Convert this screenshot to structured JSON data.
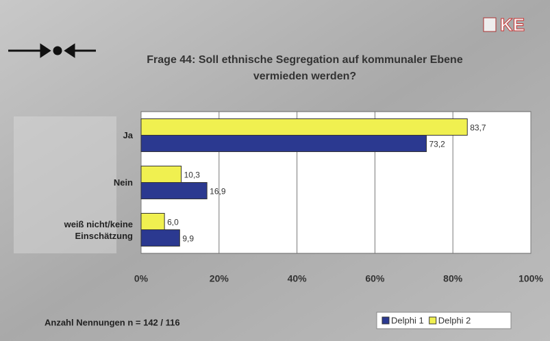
{
  "chart_data": {
    "type": "bar",
    "orientation": "horizontal",
    "title": "Frage 44: Soll ethnische Segregation auf kommunaler Ebene vermieden werden?",
    "categories": [
      "Ja",
      "Nein",
      "weiß nicht/keine Einschätzung"
    ],
    "series": [
      {
        "name": "Delphi 1",
        "color": "#2b3990",
        "values": [
          73.2,
          16.9,
          9.9
        ],
        "value_labels": [
          "73,2",
          "16,9",
          "9,9"
        ]
      },
      {
        "name": "Delphi 2",
        "color": "#f0f050",
        "values": [
          83.7,
          10.3,
          6.0
        ],
        "value_labels": [
          "83,7",
          "10,3",
          "6,0"
        ]
      }
    ],
    "xlim": [
      0,
      100
    ],
    "xticks": [
      {
        "value": 0,
        "label": "0%"
      },
      {
        "value": 20,
        "label": "20%"
      },
      {
        "value": 40,
        "label": "40%"
      },
      {
        "value": 60,
        "label": "60%"
      },
      {
        "value": 80,
        "label": "80%"
      },
      {
        "value": 100,
        "label": "100%"
      }
    ],
    "grid": true,
    "legend": "bottom-right",
    "footnote": "Anzahl Nennungen n = 142 / 116",
    "logo_text": "KE"
  }
}
